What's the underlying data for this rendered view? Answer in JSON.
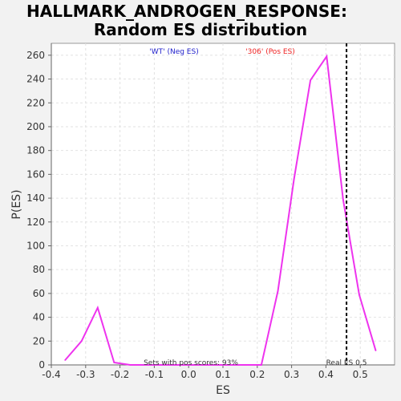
{
  "chart_data": {
    "type": "line",
    "title": "HALLMARK_ANDROGEN_RESPONSE:",
    "subtitle": "Random ES distribution",
    "xlabel": "ES",
    "ylabel": "P(ES)",
    "xlim": [
      -0.4,
      0.6
    ],
    "ylim": [
      0,
      270
    ],
    "xticks": [
      "-0.4",
      "-0.3",
      "-0.2",
      "-0.1",
      "0.0",
      "0.1",
      "0.2",
      "0.3",
      "0.4",
      "0.5"
    ],
    "yticks": [
      "0",
      "20",
      "40",
      "60",
      "80",
      "100",
      "120",
      "140",
      "160",
      "180",
      "200",
      "220",
      "240",
      "260"
    ],
    "grid": true,
    "series": [
      {
        "color": "#ee33ee",
        "x": [
          -0.36,
          -0.312,
          -0.265,
          -0.217,
          -0.17,
          -0.122,
          -0.074,
          -0.026,
          0.022,
          0.07,
          0.118,
          0.165,
          0.212,
          0.26,
          0.307,
          0.355,
          0.402,
          0.45,
          0.497,
          0.545
        ],
        "y": [
          4,
          20,
          48,
          2,
          0,
          0,
          0,
          0,
          0,
          0,
          0,
          0,
          0,
          62,
          156,
          239,
          259,
          139,
          59,
          12
        ]
      }
    ],
    "legend": {
      "neg_label": "'WT' (Neg ES)",
      "neg_color": "#2222cc",
      "pos_label": "'306' (Pos ES)",
      "pos_color": "#ee2222"
    },
    "real_es": 0.46,
    "real_es_label": "Real ES 0.5",
    "pos_scores_label": "Sets with pos scores: 93%"
  }
}
